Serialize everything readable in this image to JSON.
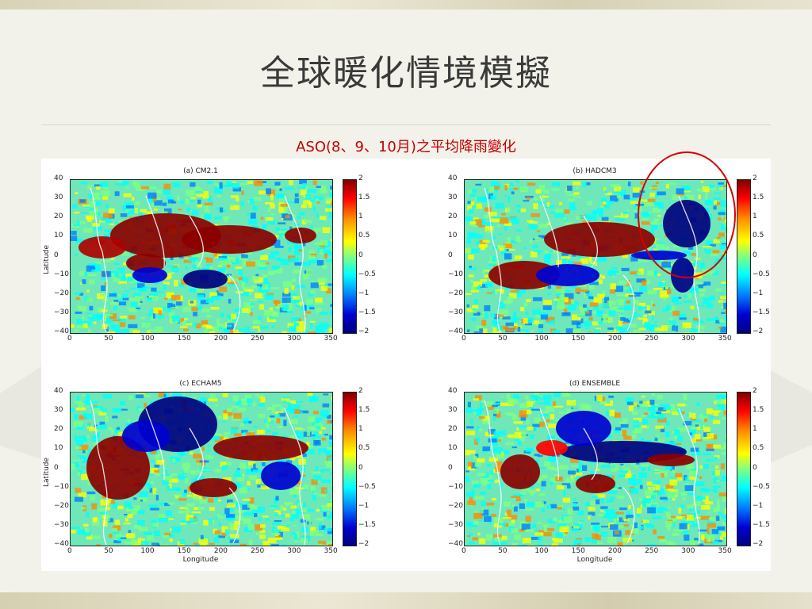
{
  "title": "全球暖化情境模擬",
  "subtitle": "ASO(8、9、10月)之平均降雨變化",
  "panels": [
    {
      "title": "(a) CM2.1"
    },
    {
      "title": "(b) HADCM3"
    },
    {
      "title": "(c) ECHAM5"
    },
    {
      "title": "(d) ENSEMBLE"
    }
  ],
  "axes": {
    "ylabel": "Latitude",
    "xlabel": "Longitude",
    "yticks": [
      "40",
      "30",
      "20",
      "10",
      "0",
      "−10",
      "−20",
      "−30",
      "−40"
    ],
    "xticks": [
      "0",
      "50",
      "100",
      "150",
      "200",
      "250",
      "300",
      "350"
    ],
    "colorbar_ticks": [
      "2",
      "1.5",
      "1",
      "0.5",
      "0",
      "−0.5",
      "−1",
      "−1.5",
      "−2"
    ]
  },
  "colors": {
    "title": "#3a3a3a",
    "subtitle": "#c00000",
    "highlight_circle": "#d40000"
  }
}
